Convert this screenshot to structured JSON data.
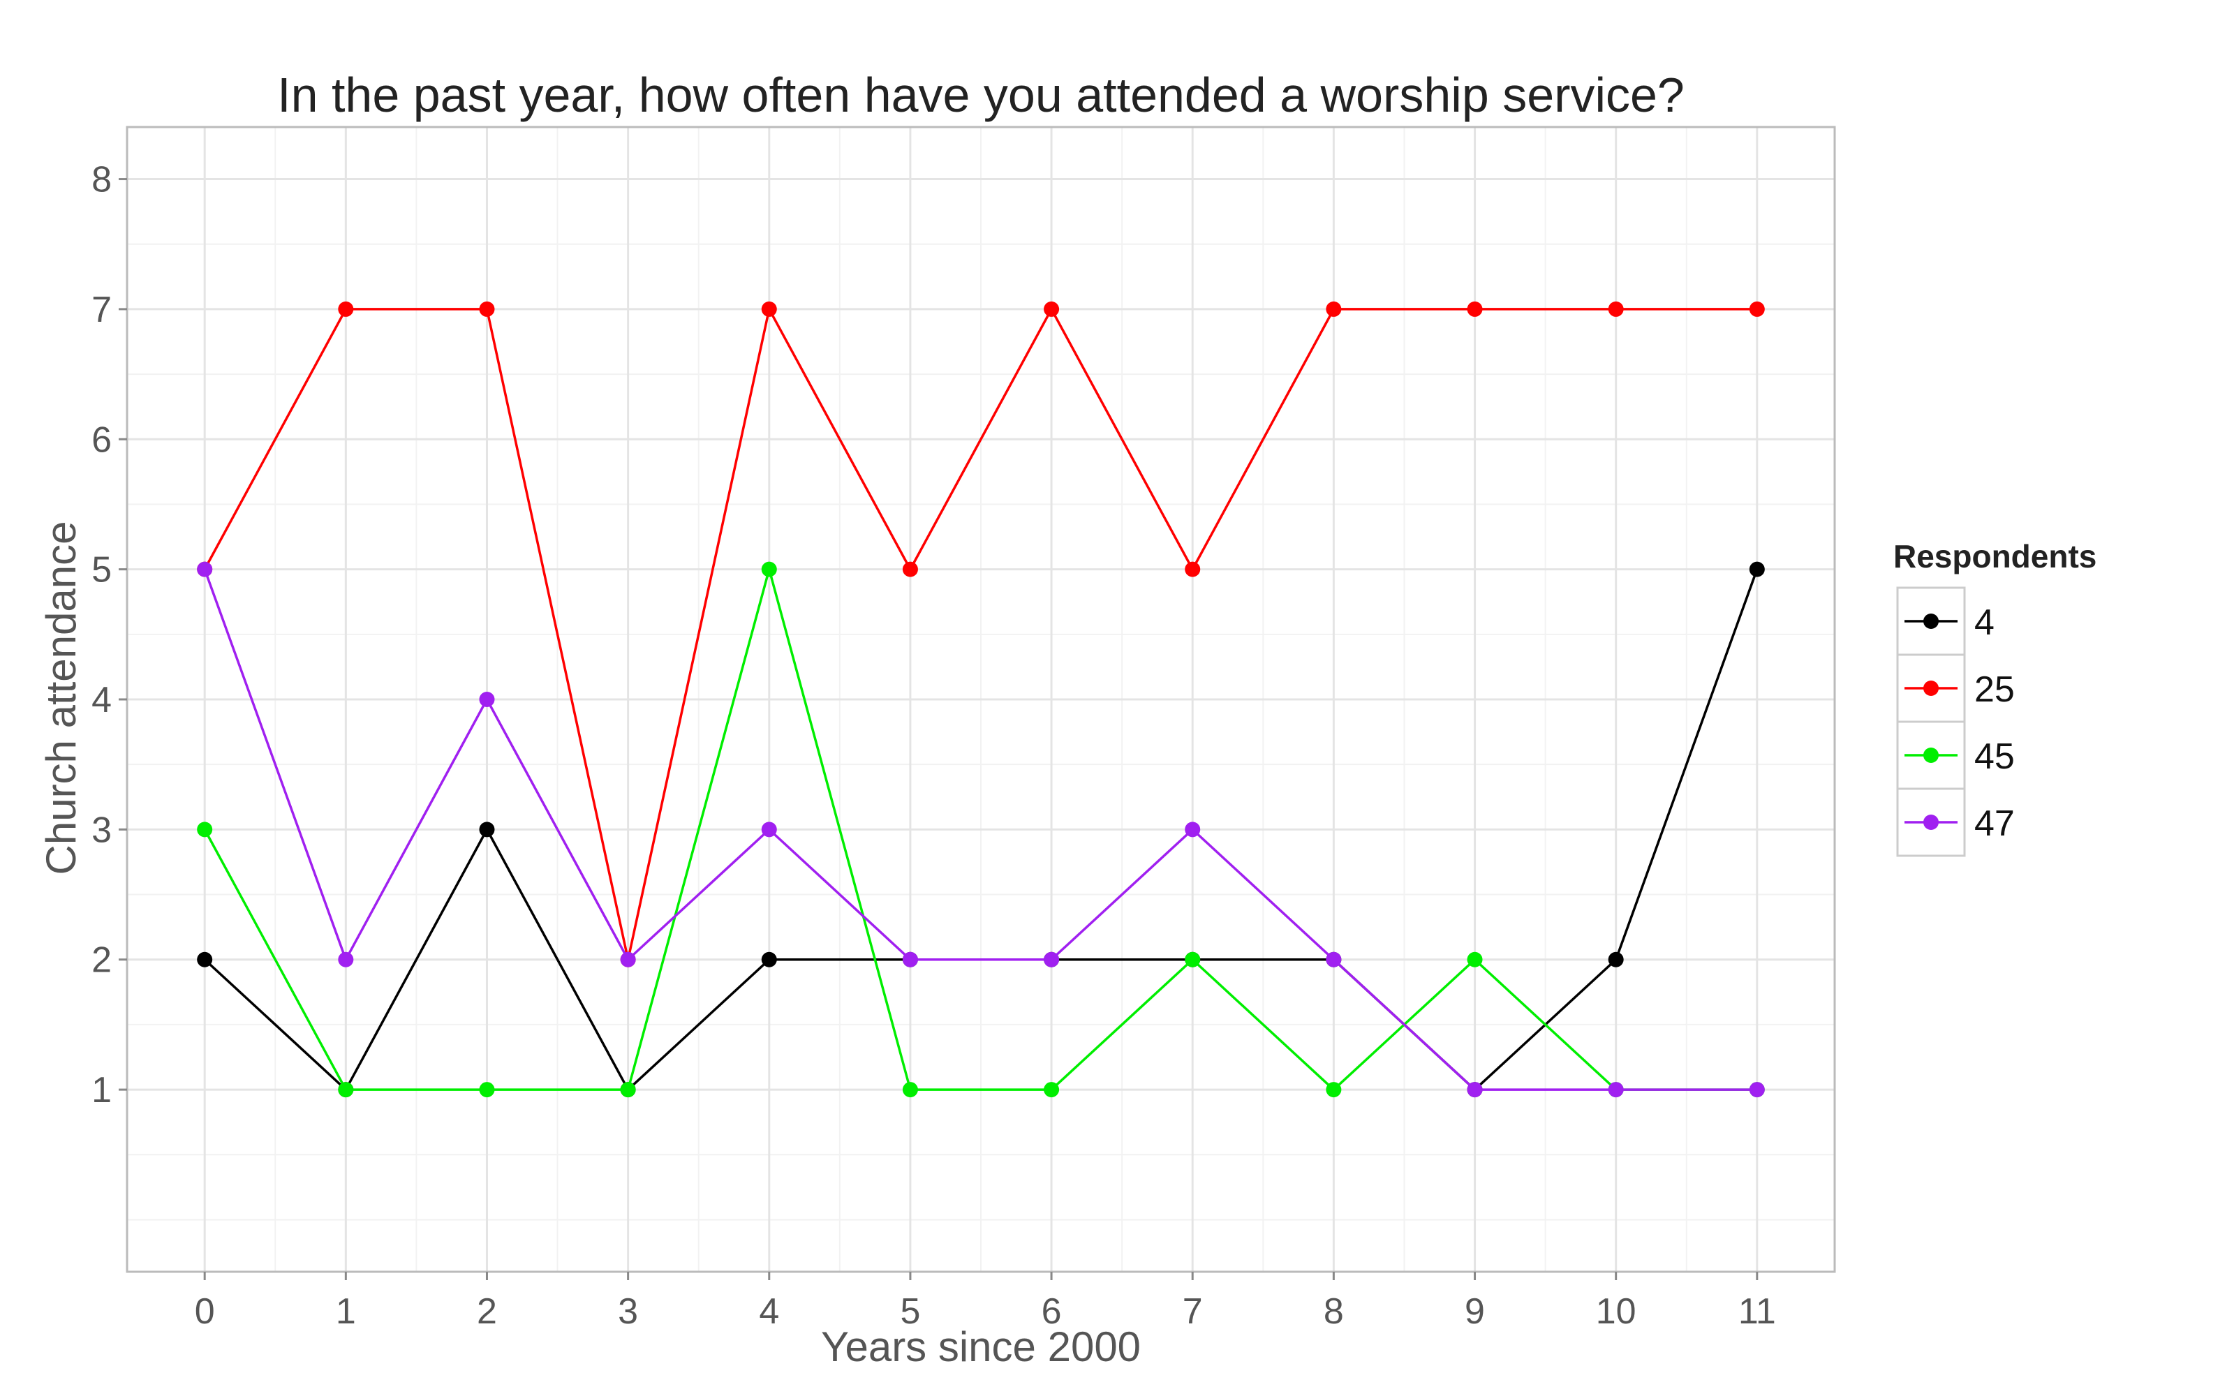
{
  "chart_data": {
    "type": "line",
    "title": "In the past year, how often have you attended a worship service?",
    "xlabel": "Years since 2000",
    "ylabel": "Church attendance",
    "x": [
      0,
      1,
      2,
      3,
      4,
      5,
      6,
      7,
      8,
      9,
      10,
      11
    ],
    "x_ticks": [
      "0",
      "1",
      "2",
      "3",
      "4",
      "5",
      "6",
      "7",
      "8",
      "9",
      "10",
      "11"
    ],
    "y_ticks": [
      "1",
      "2",
      "3",
      "4",
      "5",
      "6",
      "7",
      "8"
    ],
    "xlim": [
      -0.55,
      11.55
    ],
    "ylim": [
      -0.4,
      8.4
    ],
    "grid": true,
    "legend": {
      "title": "Respondents",
      "position": "right"
    },
    "series": [
      {
        "name": "4",
        "color": "#000000",
        "values": [
          2,
          1,
          3,
          1,
          2,
          2,
          2,
          2,
          2,
          1,
          2,
          5
        ]
      },
      {
        "name": "25",
        "color": "#ff0000",
        "values": [
          5,
          7,
          7,
          2,
          7,
          5,
          7,
          5,
          7,
          7,
          7,
          7
        ]
      },
      {
        "name": "45",
        "color": "#00ee00",
        "values": [
          3,
          1,
          1,
          1,
          5,
          1,
          1,
          2,
          1,
          2,
          1,
          1
        ]
      },
      {
        "name": "47",
        "color": "#a020f0",
        "values": [
          5,
          2,
          4,
          2,
          3,
          2,
          2,
          3,
          2,
          1,
          1,
          1
        ]
      }
    ]
  }
}
